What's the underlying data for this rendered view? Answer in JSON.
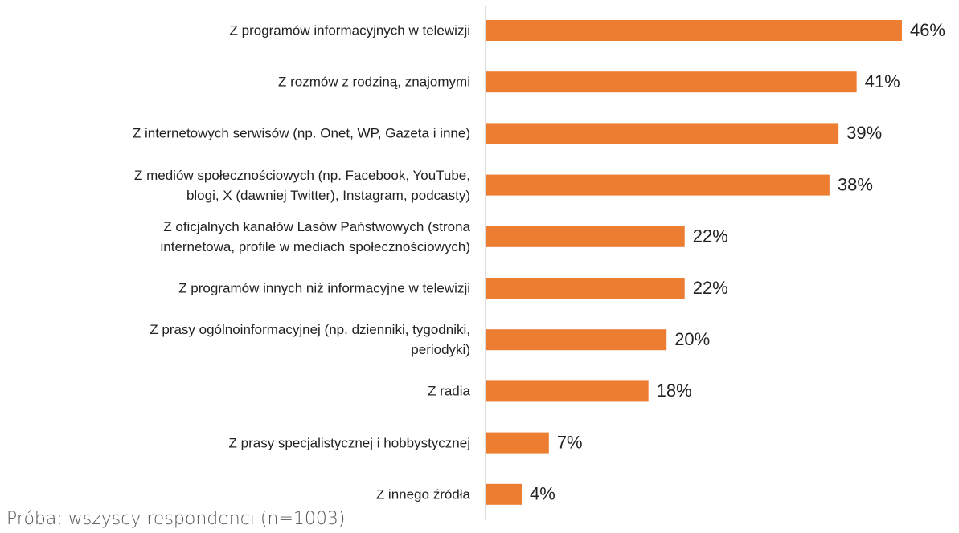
{
  "chart_data": {
    "type": "bar",
    "orientation": "horizontal",
    "categories": [
      "Z programów informacyjnych w telewizji",
      "Z rozmów z rodziną, znajomymi",
      "Z internetowych serwisów (np. Onet, WP, Gazeta i inne)",
      "Z mediów społecznościowych (np. Facebook, YouTube,\nblogi, X (dawniej Twitter), Instagram, podcasty)",
      "Z oficjalnych kanałów Lasów Państwowych (strona\ninternetowa, profile w mediach społecznościowych)",
      "Z programów innych niż informacyjne w telewizji",
      "Z prasy ogólnoinformacyjnej (np. dzienniki, tygodniki,\nperiodyki)",
      "Z radia",
      "Z prasy specjalistycznej i hobbystycznej",
      "Z innego źródła"
    ],
    "values": [
      46,
      41,
      39,
      38,
      22,
      22,
      20,
      18,
      7,
      4
    ],
    "value_labels": [
      "46%",
      "41%",
      "39%",
      "38%",
      "22%",
      "22%",
      "20%",
      "18%",
      "7%",
      "4%"
    ],
    "color": "#ed7d31",
    "annotation": "Próba: wszyscy respondenci (n=1003)"
  }
}
